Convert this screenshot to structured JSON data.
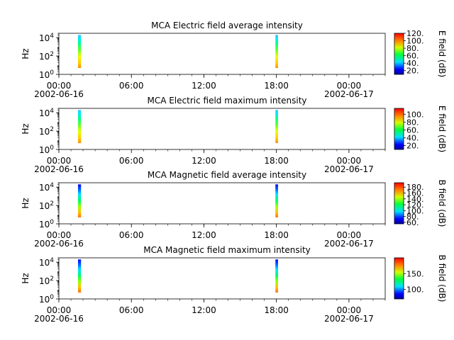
{
  "chart_data": [
    {
      "type": "heatmap",
      "title": "MCA  Electric field average intensity",
      "ylabel": "Hz",
      "yscale": "log",
      "ylim": [
        1,
        30000
      ],
      "yticks": [
        {
          "value": 1,
          "base": "10",
          "exp": "0"
        },
        {
          "value": 100,
          "base": "10",
          "exp": "2"
        },
        {
          "value": 10000,
          "base": "10",
          "exp": "4"
        }
      ],
      "xlim": [
        "2002-06-16 00:00",
        "2002-06-17 03:00"
      ],
      "xticks": [
        {
          "value": "2002-06-16 00:00",
          "time": "00:00",
          "date": "2002-06-16"
        },
        {
          "value": "2002-06-16 06:00",
          "time": "06:00",
          "date": ""
        },
        {
          "value": "2002-06-16 12:00",
          "time": "12:00",
          "date": ""
        },
        {
          "value": "2002-06-16 18:00",
          "time": "18:00",
          "date": ""
        },
        {
          "value": "2002-06-17 00:00",
          "time": "00:00",
          "date": "2002-06-17"
        }
      ],
      "colorbar": {
        "label": "E field (dB)",
        "range": [
          10,
          120
        ],
        "ticks": [
          "20.",
          "40.",
          "60.",
          "80.",
          "100.",
          "120."
        ]
      },
      "strips": [
        {
          "start": "2002-06-16 01:35",
          "end": "2002-06-16 01:50",
          "fmin": 5,
          "fmax": 20000
        },
        {
          "start": "2002-06-16 17:55",
          "end": "2002-06-16 18:08",
          "fmin": 5,
          "fmax": 20000
        }
      ]
    },
    {
      "type": "heatmap",
      "title": "MCA  Electric field maximum intensity",
      "ylabel": "Hz",
      "yscale": "log",
      "ylim": [
        1,
        30000
      ],
      "yticks": [
        {
          "value": 1,
          "base": "10",
          "exp": "0"
        },
        {
          "value": 100,
          "base": "10",
          "exp": "2"
        },
        {
          "value": 10000,
          "base": "10",
          "exp": "4"
        }
      ],
      "xlim": [
        "2002-06-16 00:00",
        "2002-06-17 03:00"
      ],
      "xticks": [
        {
          "value": "2002-06-16 00:00",
          "time": "00:00",
          "date": "2002-06-16"
        },
        {
          "value": "2002-06-16 06:00",
          "time": "06:00",
          "date": ""
        },
        {
          "value": "2002-06-16 12:00",
          "time": "12:00",
          "date": ""
        },
        {
          "value": "2002-06-16 18:00",
          "time": "18:00",
          "date": ""
        },
        {
          "value": "2002-06-17 00:00",
          "time": "00:00",
          "date": "2002-06-17"
        }
      ],
      "colorbar": {
        "label": "E field (dB)",
        "range": [
          10,
          115
        ],
        "ticks": [
          "20.",
          "40.",
          "60.",
          "80.",
          "100."
        ]
      },
      "strips": [
        {
          "start": "2002-06-16 01:35",
          "end": "2002-06-16 01:50",
          "fmin": 5,
          "fmax": 20000
        },
        {
          "start": "2002-06-16 17:55",
          "end": "2002-06-16 18:08",
          "fmin": 5,
          "fmax": 20000
        }
      ]
    },
    {
      "type": "heatmap",
      "title": "MCA  Magnetic field average intensity",
      "ylabel": "Hz",
      "yscale": "log",
      "ylim": [
        1,
        30000
      ],
      "yticks": [
        {
          "value": 1,
          "base": "10",
          "exp": "0"
        },
        {
          "value": 100,
          "base": "10",
          "exp": "2"
        },
        {
          "value": 10000,
          "base": "10",
          "exp": "4"
        }
      ],
      "xlim": [
        "2002-06-16 00:00",
        "2002-06-17 03:00"
      ],
      "xticks": [
        {
          "value": "2002-06-16 00:00",
          "time": "00:00",
          "date": "2002-06-16"
        },
        {
          "value": "2002-06-16 06:00",
          "time": "06:00",
          "date": ""
        },
        {
          "value": "2002-06-16 12:00",
          "time": "12:00",
          "date": ""
        },
        {
          "value": "2002-06-16 18:00",
          "time": "18:00",
          "date": ""
        },
        {
          "value": "2002-06-17 00:00",
          "time": "00:00",
          "date": "2002-06-17"
        }
      ],
      "colorbar": {
        "label": "B field (dB)",
        "range": [
          55,
          195
        ],
        "ticks": [
          "60.",
          "80.",
          "100.",
          "120.",
          "140.",
          "160.",
          "180."
        ]
      },
      "strips": [
        {
          "start": "2002-06-16 01:35",
          "end": "2002-06-16 01:50",
          "fmin": 5,
          "fmax": 20000
        },
        {
          "start": "2002-06-16 17:55",
          "end": "2002-06-16 18:08",
          "fmin": 5,
          "fmax": 20000
        }
      ]
    },
    {
      "type": "heatmap",
      "title": "MCA  Magnetic field maximum intensity",
      "ylabel": "Hz",
      "yscale": "log",
      "ylim": [
        1,
        30000
      ],
      "yticks": [
        {
          "value": 1,
          "base": "10",
          "exp": "0"
        },
        {
          "value": 100,
          "base": "10",
          "exp": "2"
        },
        {
          "value": 10000,
          "base": "10",
          "exp": "4"
        }
      ],
      "xlim": [
        "2002-06-16 00:00",
        "2002-06-17 03:00"
      ],
      "xticks": [
        {
          "value": "2002-06-16 00:00",
          "time": "00:00",
          "date": "2002-06-16"
        },
        {
          "value": "2002-06-16 06:00",
          "time": "06:00",
          "date": ""
        },
        {
          "value": "2002-06-16 12:00",
          "time": "12:00",
          "date": ""
        },
        {
          "value": "2002-06-16 18:00",
          "time": "18:00",
          "date": ""
        },
        {
          "value": "2002-06-17 00:00",
          "time": "00:00",
          "date": "2002-06-17"
        }
      ],
      "colorbar": {
        "label": "B field (dB)",
        "range": [
          70,
          200
        ],
        "ticks": [
          "100.",
          "150."
        ]
      },
      "strips": [
        {
          "start": "2002-06-16 01:35",
          "end": "2002-06-16 01:50",
          "fmin": 5,
          "fmax": 20000
        },
        {
          "start": "2002-06-16 17:55",
          "end": "2002-06-16 18:08",
          "fmin": 5,
          "fmax": 20000
        }
      ]
    }
  ]
}
